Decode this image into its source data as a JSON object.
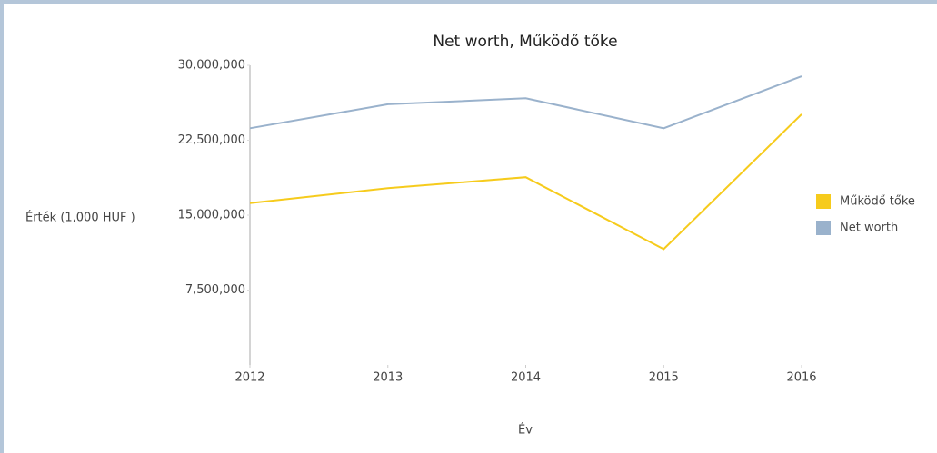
{
  "chart_data": {
    "type": "line",
    "title": "Net worth, Működő tőke",
    "x_label": "Év",
    "y_label": "Érték (1,000 HUF )",
    "x": [
      2012,
      2013,
      2014,
      2015,
      2016
    ],
    "xlim": [
      2012,
      2016
    ],
    "xticks": [
      2012,
      2013,
      2014,
      2015,
      2016
    ],
    "ylim": [
      0,
      30000000
    ],
    "yticks": [
      {
        "value": 7500000,
        "label": "7,500,000"
      },
      {
        "value": 15000000,
        "label": "15,000,000"
      },
      {
        "value": 22500000,
        "label": "22,500,000"
      },
      {
        "value": 30000000,
        "label": "30,000,000"
      }
    ],
    "legend": "right",
    "series": [
      {
        "name": "Működő tőke",
        "color": "#f6cb1c",
        "values": [
          16200000,
          17700000,
          18800000,
          11600000,
          25100000
        ]
      },
      {
        "name": "Net worth",
        "color": "#9ab2cc",
        "values": [
          23700000,
          26100000,
          26700000,
          23700000,
          28900000
        ]
      }
    ]
  }
}
